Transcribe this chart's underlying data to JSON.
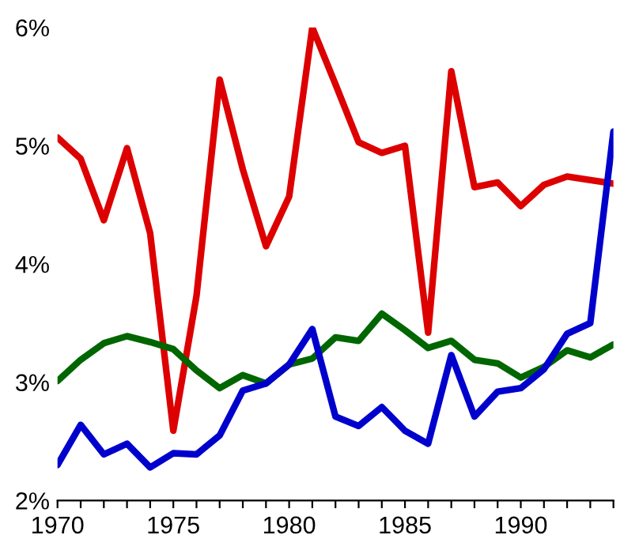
{
  "chart_data": {
    "type": "line",
    "x": [
      1970,
      1971,
      1972,
      1973,
      1974,
      1975,
      1976,
      1977,
      1978,
      1979,
      1980,
      1981,
      1982,
      1983,
      1984,
      1985,
      1986,
      1987,
      1988,
      1989,
      1990,
      1991,
      1992,
      1993,
      1994
    ],
    "series": [
      {
        "color": "#dd0000",
        "values": [
          5.07,
          4.89,
          4.37,
          4.98,
          4.26,
          2.59,
          3.73,
          5.56,
          4.8,
          4.15,
          4.57,
          6.0,
          5.52,
          5.03,
          4.94,
          5.0,
          3.42,
          5.63,
          4.65,
          4.69,
          4.49,
          4.67,
          4.74,
          4.71,
          4.68
        ]
      },
      {
        "color": "#006600",
        "values": [
          3.01,
          3.19,
          3.33,
          3.39,
          3.34,
          3.28,
          3.1,
          2.95,
          3.06,
          2.99,
          3.15,
          3.2,
          3.38,
          3.35,
          3.58,
          3.44,
          3.29,
          3.35,
          3.19,
          3.16,
          3.04,
          3.13,
          3.27,
          3.21,
          3.32
        ]
      },
      {
        "color": "#0000cc",
        "values": [
          2.3,
          2.64,
          2.39,
          2.48,
          2.28,
          2.4,
          2.39,
          2.55,
          2.93,
          2.99,
          3.15,
          3.45,
          2.71,
          2.63,
          2.79,
          2.59,
          2.48,
          3.23,
          2.71,
          2.92,
          2.95,
          3.11,
          3.41,
          3.5,
          5.12
        ]
      }
    ],
    "xlim": [
      1970,
      1994
    ],
    "xticks": [
      1970,
      {
        "value": 1971,
        "label": null
      },
      {
        "value": 1972,
        "label": null
      },
      {
        "value": 1973,
        "label": null
      },
      {
        "value": 1974,
        "label": null
      },
      1975,
      {
        "value": 1976,
        "label": null
      },
      {
        "value": 1977,
        "label": null
      },
      {
        "value": 1978,
        "label": null
      },
      {
        "value": 1979,
        "label": null
      },
      1980,
      {
        "value": 1981,
        "label": null
      },
      {
        "value": 1982,
        "label": null
      },
      {
        "value": 1983,
        "label": null
      },
      {
        "value": 1984,
        "label": null
      },
      1985,
      {
        "value": 1986,
        "label": null
      },
      {
        "value": 1987,
        "label": null
      },
      {
        "value": 1988,
        "label": null
      },
      {
        "value": 1989,
        "label": null
      },
      1990,
      {
        "value": 1991,
        "label": null
      },
      {
        "value": 1992,
        "label": null
      },
      {
        "value": 1993,
        "label": null
      },
      {
        "value": 1994,
        "label": null
      }
    ],
    "ylim": [
      2,
      6
    ],
    "yticks": [
      {
        "value": 2,
        "label": "2%"
      },
      {
        "value": 3,
        "label": "3%"
      },
      {
        "value": 4,
        "label": "4%"
      },
      {
        "value": 5,
        "label": "5%"
      },
      {
        "value": 6,
        "label": "6%"
      }
    ],
    "grid": false,
    "legend": false,
    "marker": "none",
    "line_style": "solid"
  }
}
